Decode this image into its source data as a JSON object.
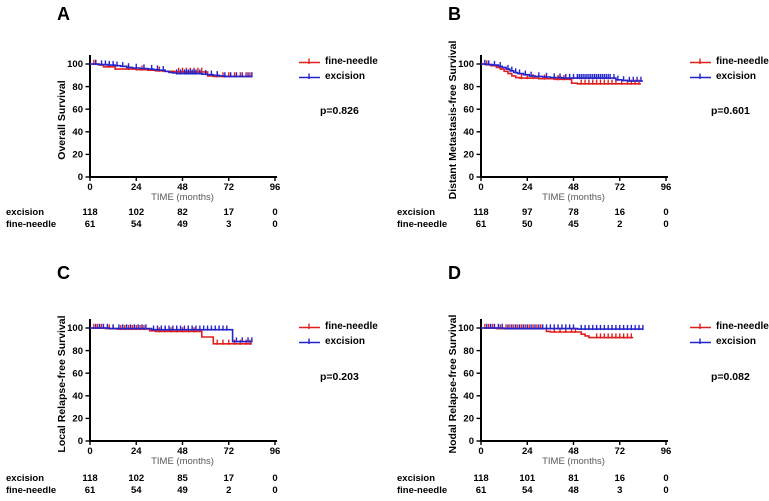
{
  "figure": {
    "background": "#ffffff",
    "colors": {
      "fine_needle": "#e0201f",
      "excision": "#2424cc",
      "axis": "#000000",
      "xlabel_text": "#595959"
    }
  },
  "chart_data": [
    {
      "type": "line",
      "panel_letter": "A",
      "ylabel": "Overall Survival",
      "xlabel": "TIME (months)",
      "p_value": "p=0.826",
      "xticks": [
        0,
        24,
        48,
        72,
        96
      ],
      "yticks": [
        0,
        20,
        40,
        60,
        80,
        100
      ],
      "xlim": [
        0,
        96
      ],
      "ylim": [
        0,
        100
      ],
      "legend_position": "right",
      "series": [
        {
          "name": "fine-needle",
          "color": "#e0201f",
          "steps": [
            [
              0,
              100
            ],
            [
              5,
              99
            ],
            [
              7,
              97.5
            ],
            [
              13,
              95.5
            ],
            [
              24,
              95
            ],
            [
              30,
              94.5
            ],
            [
              34,
              94
            ],
            [
              38,
              93.5
            ],
            [
              44,
              93
            ],
            [
              60,
              93
            ],
            [
              61,
              89.5
            ],
            [
              64,
              89
            ],
            [
              83,
              89
            ]
          ],
          "censors": [
            2,
            3,
            10,
            20,
            27,
            36,
            46,
            48,
            50,
            52,
            54,
            56,
            58,
            66,
            69,
            72,
            75,
            78,
            81,
            83
          ]
        },
        {
          "name": "excision",
          "color": "#2424cc",
          "steps": [
            [
              0,
              100
            ],
            [
              4,
              99.5
            ],
            [
              9,
              99
            ],
            [
              13,
              98.5
            ],
            [
              16,
              98
            ],
            [
              19,
              97
            ],
            [
              22,
              96.5
            ],
            [
              26,
              96
            ],
            [
              30,
              95.5
            ],
            [
              33,
              95
            ],
            [
              36,
              94.5
            ],
            [
              39,
              93.5
            ],
            [
              41,
              92.5
            ],
            [
              43,
              92
            ],
            [
              45,
              91.5
            ],
            [
              56,
              91.5
            ],
            [
              58,
              91
            ],
            [
              61,
              90.5
            ],
            [
              64,
              90
            ],
            [
              67,
              89.5
            ],
            [
              70,
              89
            ],
            [
              84,
              89
            ]
          ],
          "censors": [
            3,
            6,
            8,
            10,
            12,
            14,
            17,
            20,
            24,
            28,
            32,
            35,
            38,
            45,
            47,
            49,
            50,
            51,
            52,
            53,
            54,
            55,
            57,
            60,
            63,
            66,
            70,
            73,
            76,
            79,
            82,
            84
          ]
        }
      ],
      "at_risk": {
        "rows": [
          {
            "label": "excision",
            "values": [
              118,
              102,
              82,
              17,
              0
            ]
          },
          {
            "label": "fine-needle",
            "values": [
              61,
              54,
              49,
              3,
              0
            ]
          }
        ]
      }
    },
    {
      "type": "line",
      "panel_letter": "B",
      "ylabel": "Distant Metastasis-free Survival",
      "xlabel": "TIME (months)",
      "p_value": "p=0.601",
      "xticks": [
        0,
        24,
        48,
        72,
        96
      ],
      "yticks": [
        0,
        20,
        40,
        60,
        80,
        100
      ],
      "xlim": [
        0,
        96
      ],
      "ylim": [
        0,
        100
      ],
      "legend_position": "right",
      "series": [
        {
          "name": "fine-needle",
          "color": "#e0201f",
          "steps": [
            [
              0,
              100
            ],
            [
              2,
              99.5
            ],
            [
              5,
              98.5
            ],
            [
              8,
              97
            ],
            [
              10,
              95.5
            ],
            [
              12,
              93.5
            ],
            [
              14,
              91.5
            ],
            [
              16,
              89.5
            ],
            [
              18,
              88
            ],
            [
              20,
              87.5
            ],
            [
              30,
              87
            ],
            [
              38,
              86.5
            ],
            [
              46,
              86.5
            ],
            [
              47,
              83
            ],
            [
              50,
              82.5
            ],
            [
              83,
              82.5
            ]
          ],
          "censors": [
            3,
            21,
            24,
            27,
            33,
            40,
            43,
            52,
            54,
            56,
            58,
            60,
            62,
            64,
            66,
            68,
            70,
            73,
            76,
            78,
            80,
            82
          ]
        },
        {
          "name": "excision",
          "color": "#2424cc",
          "steps": [
            [
              0,
              100
            ],
            [
              3,
              99.5
            ],
            [
              6,
              99
            ],
            [
              9,
              98
            ],
            [
              11,
              97
            ],
            [
              13,
              95.5
            ],
            [
              15,
              94
            ],
            [
              17,
              92.5
            ],
            [
              19,
              91.5
            ],
            [
              22,
              90.5
            ],
            [
              25,
              89.5
            ],
            [
              28,
              89
            ],
            [
              32,
              88.5
            ],
            [
              36,
              88
            ],
            [
              42,
              87.5
            ],
            [
              68,
              87.5
            ],
            [
              70,
              86
            ],
            [
              73,
              85.5
            ],
            [
              76,
              85
            ],
            [
              84,
              85
            ]
          ],
          "censors": [
            2,
            4,
            7,
            10,
            14,
            16,
            18,
            20,
            23,
            26,
            30,
            34,
            38,
            41,
            44,
            46,
            48,
            50,
            51,
            52,
            53,
            54,
            55,
            56,
            57,
            58,
            59,
            60,
            61,
            62,
            63,
            64,
            65,
            66,
            67,
            69,
            71,
            74,
            77,
            79,
            81,
            83
          ]
        }
      ],
      "at_risk": {
        "rows": [
          {
            "label": "excision",
            "values": [
              118,
              97,
              78,
              16,
              0
            ]
          },
          {
            "label": "fine-needle",
            "values": [
              61,
              50,
              45,
              2,
              0
            ]
          }
        ]
      }
    },
    {
      "type": "line",
      "panel_letter": "C",
      "ylabel": "Local Relapse-free Survival",
      "xlabel": "TIME (months)",
      "p_value": "p=0.203",
      "xticks": [
        0,
        24,
        48,
        72,
        96
      ],
      "yticks": [
        0,
        20,
        40,
        60,
        80,
        100
      ],
      "xlim": [
        0,
        96
      ],
      "ylim": [
        0,
        100
      ],
      "legend_position": "right",
      "series": [
        {
          "name": "fine-needle",
          "color": "#e0201f",
          "steps": [
            [
              0,
              100
            ],
            [
              8,
              99.5
            ],
            [
              14,
              99
            ],
            [
              31,
              97.5
            ],
            [
              34,
              97
            ],
            [
              57,
              97
            ],
            [
              58,
              92
            ],
            [
              63,
              92
            ],
            [
              64,
              86
            ],
            [
              84,
              86
            ]
          ],
          "censors": [
            2,
            4,
            6,
            10,
            12,
            16,
            18,
            20,
            22,
            24,
            26,
            28,
            36,
            39,
            42,
            45,
            48,
            51,
            54,
            66,
            69,
            72,
            75,
            78,
            81,
            83
          ]
        },
        {
          "name": "excision",
          "color": "#2424cc",
          "steps": [
            [
              0,
              100
            ],
            [
              10,
              99.5
            ],
            [
              32,
              98.5
            ],
            [
              73,
              98.5
            ],
            [
              74,
              88
            ],
            [
              84,
              88
            ]
          ],
          "censors": [
            3,
            5,
            7,
            9,
            12,
            15,
            17,
            19,
            21,
            23,
            25,
            27,
            29,
            33,
            35,
            37,
            39,
            41,
            43,
            45,
            47,
            49,
            51,
            53,
            55,
            57,
            59,
            61,
            63,
            65,
            67,
            69,
            71,
            76,
            79,
            82,
            84
          ]
        }
      ],
      "at_risk": {
        "rows": [
          {
            "label": "excision",
            "values": [
              118,
              102,
              85,
              17,
              0
            ]
          },
          {
            "label": "fine-needle",
            "values": [
              61,
              54,
              49,
              2,
              0
            ]
          }
        ]
      }
    },
    {
      "type": "line",
      "panel_letter": "D",
      "ylabel": "Nodal Relapse-free Survival",
      "xlabel": "TIME (months)",
      "p_value": "p=0.082",
      "xticks": [
        0,
        24,
        48,
        72,
        96
      ],
      "yticks": [
        0,
        20,
        40,
        60,
        80,
        100
      ],
      "xlim": [
        0,
        96
      ],
      "ylim": [
        0,
        100
      ],
      "legend_position": "right",
      "series": [
        {
          "name": "fine-needle",
          "color": "#e0201f",
          "steps": [
            [
              0,
              100
            ],
            [
              8,
              99.5
            ],
            [
              34,
              97
            ],
            [
              36,
              96.5
            ],
            [
              51,
              96.5
            ],
            [
              52,
              94.5
            ],
            [
              54,
              93
            ],
            [
              56,
              91.5
            ],
            [
              79,
              91.5
            ]
          ],
          "censors": [
            2,
            4,
            6,
            10,
            13,
            15,
            17,
            19,
            21,
            23,
            25,
            27,
            29,
            31,
            38,
            41,
            44,
            47,
            49,
            60,
            62,
            64,
            66,
            68,
            70,
            72,
            74,
            76,
            78
          ]
        },
        {
          "name": "excision",
          "color": "#2424cc",
          "steps": [
            [
              0,
              100
            ],
            [
              12,
              99.5
            ],
            [
              49,
              99.5
            ],
            [
              50,
              99
            ],
            [
              84,
              99
            ]
          ],
          "censors": [
            3,
            5,
            7,
            9,
            11,
            14,
            16,
            18,
            20,
            22,
            24,
            26,
            28,
            30,
            32,
            34,
            36,
            38,
            40,
            42,
            44,
            46,
            48,
            52,
            54,
            56,
            58,
            60,
            62,
            64,
            66,
            68,
            70,
            72,
            74,
            76,
            78,
            80,
            82,
            84
          ]
        }
      ],
      "at_risk": {
        "rows": [
          {
            "label": "excision",
            "values": [
              118,
              101,
              81,
              16,
              0
            ]
          },
          {
            "label": "fine-needle",
            "values": [
              61,
              54,
              48,
              3,
              0
            ]
          }
        ]
      }
    }
  ]
}
